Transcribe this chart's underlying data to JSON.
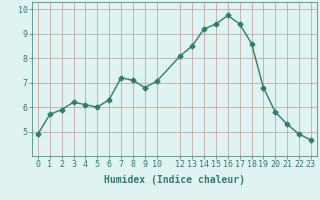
{
  "x": [
    0,
    1,
    2,
    3,
    4,
    5,
    6,
    7,
    8,
    9,
    10,
    12,
    13,
    14,
    15,
    16,
    17,
    18,
    19,
    20,
    21,
    22,
    23
  ],
  "y": [
    4.9,
    5.7,
    5.9,
    6.2,
    6.1,
    6.0,
    6.3,
    7.2,
    7.1,
    6.8,
    7.05,
    8.1,
    8.5,
    9.2,
    9.4,
    9.75,
    9.4,
    8.6,
    6.8,
    5.8,
    5.3,
    4.9,
    4.65
  ],
  "line_color": "#2e7d6e",
  "marker": "D",
  "marker_size": 2.5,
  "bg_color": "#dff3f3",
  "grid_color": "#c09898",
  "xlabel": "Humidex (Indice chaleur)",
  "xlabel_fontsize": 7,
  "tick_fontsize": 6,
  "ylim": [
    4.0,
    10.3
  ],
  "xlim": [
    -0.5,
    23.5
  ],
  "yticks": [
    5,
    6,
    7,
    8,
    9,
    10
  ],
  "xticks": [
    0,
    1,
    2,
    3,
    4,
    5,
    6,
    7,
    8,
    9,
    10,
    12,
    13,
    14,
    15,
    16,
    17,
    18,
    19,
    20,
    21,
    22,
    23
  ],
  "linewidth": 1.0
}
